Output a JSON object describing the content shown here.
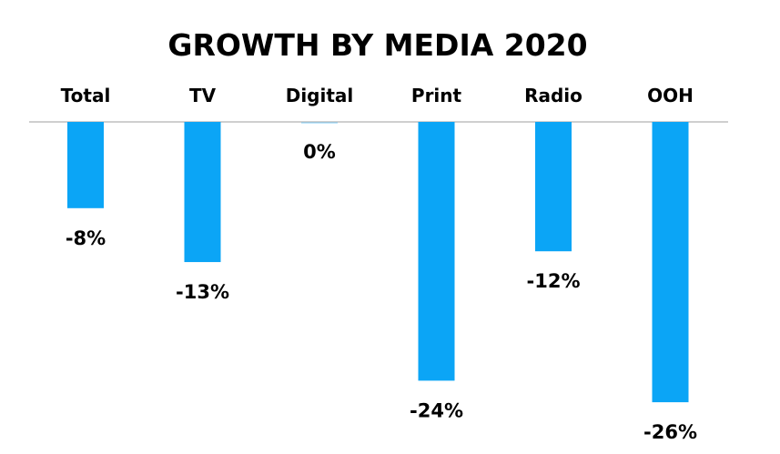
{
  "chart_data": {
    "type": "bar",
    "title": "GROWTH BY MEDIA 2020",
    "categories": [
      "Total",
      "TV",
      "Digital",
      "Print",
      "Radio",
      "OOH"
    ],
    "values": [
      -8,
      -13,
      0,
      -24,
      -12,
      -26
    ],
    "value_labels": [
      "-8%",
      "-13%",
      "0%",
      "-24%",
      "-12%",
      "-26%"
    ],
    "xlabel": "",
    "ylabel": "",
    "ylim": [
      -26,
      0
    ],
    "legend": "none",
    "grid": false,
    "bar_color": "#0BA5F6",
    "axis_color": "#CFCFCF"
  }
}
